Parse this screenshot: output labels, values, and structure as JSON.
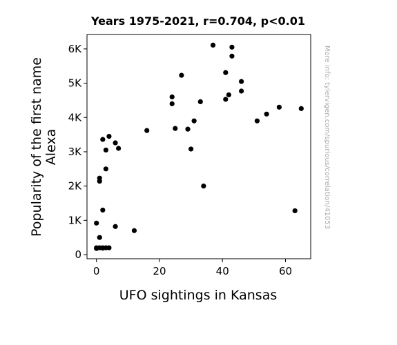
{
  "chart_data": {
    "type": "scatter",
    "title": "Years 1975-2021, r=0.704, p<0.01",
    "xlabel": "UFO sightings in Kansas",
    "ylabel_lines": [
      "Popularity of the first name",
      "Alexa"
    ],
    "xlim": [
      -3,
      68
    ],
    "ylim": [
      -120,
      6420
    ],
    "xticks": [
      0,
      20,
      40,
      60
    ],
    "xtick_labels": [
      "0",
      "20",
      "40",
      "60"
    ],
    "yticks": [
      0,
      1000,
      2000,
      3000,
      4000,
      5000,
      6000
    ],
    "ytick_labels": [
      "0",
      "1K",
      "2K",
      "3K",
      "4K",
      "5K",
      "6K"
    ],
    "grid": false,
    "legend": "none",
    "marker_color": "#000000",
    "watermark": "More info: tylervigen.com/spurious/correlation/41053",
    "points": [
      {
        "x": 0,
        "y": 920
      },
      {
        "x": 0,
        "y": 200
      },
      {
        "x": 0,
        "y": 180
      },
      {
        "x": 1,
        "y": 200
      },
      {
        "x": 1,
        "y": 500
      },
      {
        "x": 1,
        "y": 2140
      },
      {
        "x": 1,
        "y": 2230
      },
      {
        "x": 2,
        "y": 200
      },
      {
        "x": 2,
        "y": 190
      },
      {
        "x": 2,
        "y": 1300
      },
      {
        "x": 2,
        "y": 3360
      },
      {
        "x": 3,
        "y": 200
      },
      {
        "x": 3,
        "y": 2500
      },
      {
        "x": 3,
        "y": 3050
      },
      {
        "x": 4,
        "y": 200
      },
      {
        "x": 4,
        "y": 3450
      },
      {
        "x": 6,
        "y": 820
      },
      {
        "x": 6,
        "y": 3260
      },
      {
        "x": 7,
        "y": 3100
      },
      {
        "x": 12,
        "y": 700
      },
      {
        "x": 16,
        "y": 3620
      },
      {
        "x": 24,
        "y": 4400
      },
      {
        "x": 24,
        "y": 4600
      },
      {
        "x": 25,
        "y": 3680
      },
      {
        "x": 27,
        "y": 5230
      },
      {
        "x": 29,
        "y": 3660
      },
      {
        "x": 30,
        "y": 3080
      },
      {
        "x": 31,
        "y": 3900
      },
      {
        "x": 33,
        "y": 4460
      },
      {
        "x": 34,
        "y": 2000
      },
      {
        "x": 37,
        "y": 6110
      },
      {
        "x": 41,
        "y": 5310
      },
      {
        "x": 41,
        "y": 4530
      },
      {
        "x": 42,
        "y": 4660
      },
      {
        "x": 43,
        "y": 6050
      },
      {
        "x": 43,
        "y": 5790
      },
      {
        "x": 46,
        "y": 5050
      },
      {
        "x": 46,
        "y": 4770
      },
      {
        "x": 51,
        "y": 3900
      },
      {
        "x": 54,
        "y": 4100
      },
      {
        "x": 58,
        "y": 4300
      },
      {
        "x": 63,
        "y": 1280
      },
      {
        "x": 65,
        "y": 4260
      }
    ]
  }
}
